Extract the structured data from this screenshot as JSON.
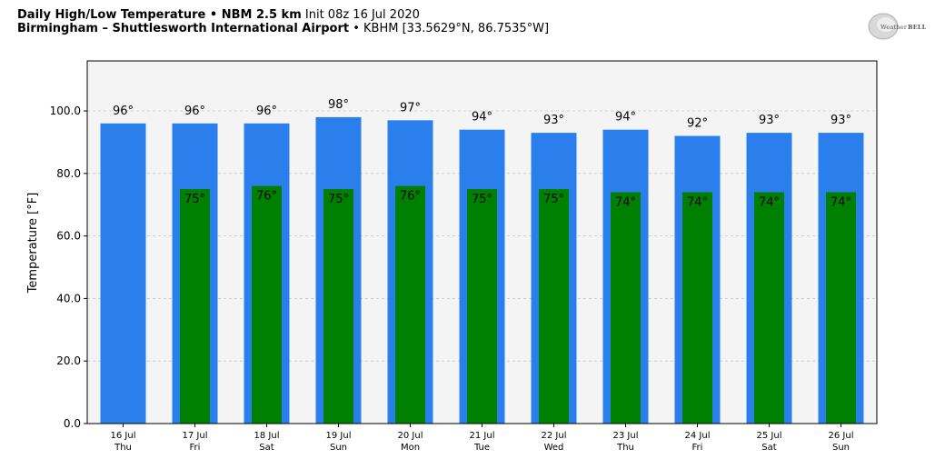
{
  "header": {
    "line1_bold": "Daily High/Low Temperature • NBM 2.5 km",
    "line1_rest": "Init 08z 16 Jul 2020",
    "line2_bold": "Birmingham – Shuttlesworth International Airport",
    "line2_rest": "• KBHM [33.5629°N, 86.7535°W]"
  },
  "logo": {
    "text_a": "Weather",
    "text_b": "BELL"
  },
  "chart_data": {
    "type": "bar",
    "ylabel": "Temperature [°F]",
    "ylim": [
      0,
      116
    ],
    "yticks": [
      0,
      20,
      40,
      60,
      80,
      100
    ],
    "ytick_labels": [
      "0.0",
      "20.0",
      "40.0",
      "60.0",
      "80.0",
      "100.0"
    ],
    "grid": true,
    "categories": [
      {
        "date": "16 Jul",
        "day": "Thu"
      },
      {
        "date": "17 Jul",
        "day": "Fri"
      },
      {
        "date": "18 Jul",
        "day": "Sat"
      },
      {
        "date": "19 Jul",
        "day": "Sun"
      },
      {
        "date": "20 Jul",
        "day": "Mon"
      },
      {
        "date": "21 Jul",
        "day": "Tue"
      },
      {
        "date": "22 Jul",
        "day": "Wed"
      },
      {
        "date": "23 Jul",
        "day": "Thu"
      },
      {
        "date": "24 Jul",
        "day": "Fri"
      },
      {
        "date": "25 Jul",
        "day": "Sat"
      },
      {
        "date": "26 Jul",
        "day": "Sun"
      }
    ],
    "series": [
      {
        "color": "#2b7fec",
        "values": [
          96,
          96,
          96,
          98,
          97,
          94,
          93,
          94,
          92,
          93,
          93
        ],
        "labels": [
          "96°",
          "96°",
          "96°",
          "98°",
          "97°",
          "94°",
          "93°",
          "94°",
          "92°",
          "93°",
          "93°"
        ]
      },
      {
        "color": "#008000",
        "values": [
          null,
          75,
          76,
          75,
          76,
          75,
          75,
          74,
          74,
          74,
          74
        ],
        "labels": [
          "",
          "75°",
          "76°",
          "75°",
          "76°",
          "75°",
          "75°",
          "74°",
          "74°",
          "74°",
          "74°"
        ]
      }
    ],
    "plot_background": "#f4f4f4"
  }
}
